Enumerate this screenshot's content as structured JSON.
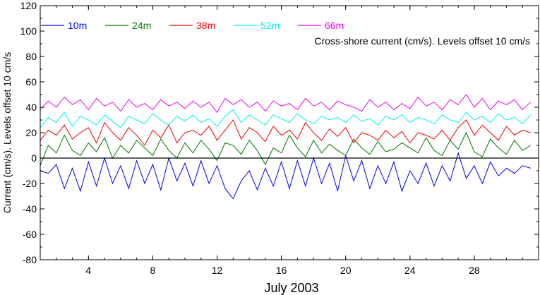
{
  "chart_data": {
    "type": "line",
    "title": "",
    "annotation": "Cross-shore current (cm/s). Levels offset 10 cm/s",
    "xlabel": "July 2003",
    "ylabel": "Current (cm/s). Levels offset 10 cm/s",
    "xlim": [
      1,
      32
    ],
    "ylim": [
      -80,
      120
    ],
    "xticks": [
      4,
      8,
      12,
      16,
      20,
      24,
      28
    ],
    "xtick_labels": [
      "4",
      "8",
      "12",
      "16",
      "20",
      "24",
      "28"
    ],
    "yticks": [
      -80,
      -60,
      -40,
      -20,
      0,
      20,
      40,
      60,
      80,
      100,
      120
    ],
    "ytick_labels": [
      "-80",
      "-60",
      "-40",
      "-20",
      "0",
      "20",
      "40",
      "60",
      "80",
      "100",
      "120"
    ],
    "zero_line": true,
    "grid": false,
    "legend_position": "top-left",
    "x": [
      1.0,
      1.5,
      2.0,
      2.5,
      3.0,
      3.5,
      4.0,
      4.5,
      5.0,
      5.5,
      6.0,
      6.5,
      7.0,
      7.5,
      8.0,
      8.5,
      9.0,
      9.5,
      10.0,
      10.5,
      11.0,
      11.5,
      12.0,
      12.5,
      13.0,
      13.5,
      14.0,
      14.5,
      15.0,
      15.5,
      16.0,
      16.5,
      17.0,
      17.5,
      18.0,
      18.5,
      19.0,
      19.5,
      20.0,
      20.5,
      21.0,
      21.5,
      22.0,
      22.5,
      23.0,
      23.5,
      24.0,
      24.5,
      25.0,
      25.5,
      26.0,
      26.5,
      27.0,
      27.5,
      28.0,
      28.5,
      29.0,
      29.5,
      30.0,
      30.5,
      31.0,
      31.5
    ],
    "series": [
      {
        "name": "10m",
        "color": "#0000ee",
        "values": [
          -10,
          -12,
          -5,
          -24,
          -8,
          -26,
          -3,
          -22,
          0,
          -20,
          -6,
          -24,
          -2,
          -20,
          -5,
          -25,
          0,
          -18,
          -4,
          -22,
          -2,
          -20,
          -6,
          -24,
          -32,
          -18,
          -10,
          -25,
          -8,
          -22,
          -3,
          -24,
          -2,
          -22,
          0,
          -20,
          -4,
          -26,
          2,
          -18,
          -2,
          -24,
          -6,
          -20,
          -3,
          -26,
          -10,
          -20,
          -4,
          -22,
          -6,
          -18,
          4,
          -16,
          -6,
          -20,
          -3,
          -14,
          -8,
          -12,
          -6,
          -8
        ]
      },
      {
        "name": "24m",
        "color": "#007700",
        "values": [
          -6,
          10,
          4,
          18,
          6,
          2,
          12,
          5,
          16,
          0,
          10,
          4,
          14,
          8,
          2,
          15,
          6,
          0,
          12,
          4,
          14,
          7,
          -2,
          12,
          10,
          3,
          14,
          6,
          -5,
          8,
          4,
          18,
          8,
          1,
          14,
          4,
          11,
          6,
          2,
          15,
          8,
          3,
          13,
          5,
          7,
          12,
          8,
          4,
          16,
          6,
          2,
          14,
          7,
          20,
          5,
          1,
          15,
          8,
          3,
          14,
          6,
          10
        ]
      },
      {
        "name": "38m",
        "color": "#ee0000",
        "values": [
          14,
          22,
          18,
          26,
          15,
          20,
          24,
          12,
          28,
          20,
          14,
          24,
          18,
          10,
          22,
          16,
          26,
          12,
          20,
          22,
          18,
          25,
          14,
          22,
          30,
          15,
          24,
          20,
          13,
          25,
          18,
          22,
          15,
          28,
          20,
          14,
          23,
          17,
          24,
          12,
          20,
          18,
          14,
          22,
          16,
          21,
          12,
          20,
          18,
          15,
          22,
          14,
          24,
          30,
          18,
          26,
          20,
          14,
          25,
          18,
          22,
          20
        ]
      },
      {
        "name": "52m",
        "color": "#00eeee",
        "values": [
          24,
          32,
          28,
          36,
          25,
          33,
          30,
          26,
          34,
          29,
          24,
          33,
          30,
          27,
          35,
          30,
          26,
          33,
          29,
          34,
          28,
          31,
          25,
          33,
          38,
          28,
          34,
          30,
          26,
          34,
          31,
          28,
          35,
          30,
          27,
          33,
          30,
          32,
          28,
          34,
          29,
          31,
          26,
          33,
          30,
          34,
          28,
          32,
          30,
          27,
          34,
          30,
          28,
          36,
          30,
          33,
          28,
          35,
          30,
          32,
          27,
          34
        ]
      },
      {
        "name": "66m",
        "color": "#ee00ee",
        "values": [
          38,
          45,
          40,
          48,
          42,
          46,
          38,
          47,
          41,
          44,
          37,
          46,
          40,
          43,
          38,
          46,
          41,
          44,
          39,
          45,
          40,
          44,
          36,
          47,
          42,
          46,
          40,
          44,
          37,
          45,
          41,
          43,
          38,
          47,
          41,
          44,
          38,
          45,
          42,
          40,
          37,
          46,
          40,
          44,
          38,
          43,
          39,
          48,
          41,
          44,
          38,
          46,
          42,
          50,
          40,
          47,
          38,
          45,
          42,
          46,
          38,
          44
        ]
      }
    ]
  }
}
